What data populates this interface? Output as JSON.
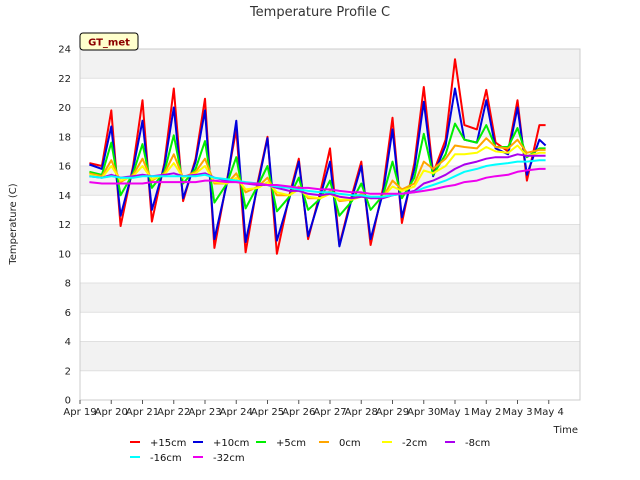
{
  "chart_data": {
    "type": "line",
    "title": "Temperature Profile C",
    "xlabel": "Time",
    "ylabel": "Temperature (C)",
    "ylim": [
      0,
      24
    ],
    "yticks": [
      0,
      2,
      4,
      6,
      8,
      10,
      12,
      14,
      16,
      18,
      20,
      22,
      24
    ],
    "xticks": [
      "Apr 19",
      "Apr 20",
      "Apr 21",
      "Apr 22",
      "Apr 23",
      "Apr 24",
      "Apr 25",
      "Apr 26",
      "Apr 27",
      "Apr 28",
      "Apr 29",
      "Apr 30",
      "May 1",
      "May 2",
      "May 3",
      "May 4"
    ],
    "x_units": "days since Apr 19",
    "xlim": [
      0,
      16
    ],
    "badge": "GT_met",
    "legend_position": "bottom",
    "series": [
      {
        "name": "+15cm",
        "color": "#ff0000",
        "x": [
          0.3,
          0.7,
          1.0,
          1.3,
          1.7,
          2.0,
          2.3,
          2.7,
          3.0,
          3.3,
          3.7,
          4.0,
          4.3,
          4.7,
          5.0,
          5.3,
          5.7,
          6.0,
          6.3,
          6.7,
          7.0,
          7.3,
          7.7,
          8.0,
          8.3,
          8.7,
          9.0,
          9.3,
          9.7,
          10.0,
          10.3,
          10.7,
          11.0,
          11.3,
          11.7,
          12.0,
          12.3,
          12.7,
          13.0,
          13.3,
          13.7,
          14.0,
          14.3,
          14.7,
          14.9
        ],
        "y": [
          16.2,
          16.0,
          19.8,
          11.9,
          16.0,
          20.5,
          12.2,
          16.2,
          21.3,
          13.6,
          16.5,
          20.6,
          10.4,
          15.0,
          18.5,
          10.1,
          15.0,
          18.0,
          10.0,
          14.0,
          16.5,
          11.0,
          14.3,
          17.2,
          10.6,
          14.0,
          16.3,
          10.6,
          14.5,
          19.3,
          12.1,
          16.2,
          21.4,
          15.5,
          17.8,
          23.3,
          18.8,
          18.5,
          21.2,
          17.6,
          17.0,
          20.5,
          15.0,
          18.8,
          18.8
        ]
      },
      {
        "name": "+10cm",
        "color": "#0000dd",
        "x": [
          0.3,
          0.7,
          1.0,
          1.3,
          1.7,
          2.0,
          2.3,
          2.7,
          3.0,
          3.3,
          3.7,
          4.0,
          4.3,
          4.7,
          5.0,
          5.3,
          5.7,
          6.0,
          6.3,
          6.7,
          7.0,
          7.3,
          7.7,
          8.0,
          8.3,
          8.7,
          9.0,
          9.3,
          9.7,
          10.0,
          10.3,
          10.7,
          11.0,
          11.3,
          11.7,
          12.0,
          12.3,
          12.7,
          13.0,
          13.3,
          13.7,
          14.0,
          14.3,
          14.7,
          14.9
        ],
        "y": [
          16.1,
          15.8,
          18.7,
          12.6,
          15.8,
          19.1,
          13.0,
          16.0,
          20.0,
          13.8,
          16.3,
          19.8,
          11.0,
          14.8,
          19.1,
          10.8,
          14.8,
          17.9,
          10.9,
          13.8,
          16.3,
          11.2,
          14.0,
          16.3,
          10.5,
          13.8,
          16.0,
          11.0,
          14.2,
          18.5,
          12.5,
          15.8,
          20.4,
          15.3,
          17.4,
          21.3,
          17.8,
          17.6,
          20.5,
          17.2,
          16.8,
          20.0,
          15.4,
          17.8,
          17.4
        ]
      },
      {
        "name": "+5cm",
        "color": "#00ee00",
        "x": [
          0.3,
          0.7,
          1.0,
          1.3,
          1.7,
          2.0,
          2.3,
          2.7,
          3.0,
          3.3,
          3.7,
          4.0,
          4.3,
          4.7,
          5.0,
          5.3,
          5.7,
          6.0,
          6.3,
          6.7,
          7.0,
          7.3,
          7.7,
          8.0,
          8.3,
          8.7,
          9.0,
          9.3,
          9.7,
          10.0,
          10.3,
          10.7,
          11.0,
          11.3,
          11.7,
          12.0,
          12.3,
          12.7,
          13.0,
          13.3,
          13.7,
          14.0,
          14.3,
          14.7,
          14.9
        ],
        "y": [
          15.6,
          15.4,
          17.6,
          14.0,
          15.5,
          17.5,
          14.5,
          15.6,
          18.1,
          14.8,
          15.8,
          17.7,
          13.5,
          14.8,
          16.6,
          13.1,
          14.7,
          16.0,
          12.9,
          13.9,
          15.2,
          13.0,
          13.8,
          15.0,
          12.6,
          13.6,
          14.8,
          13.0,
          14.0,
          16.3,
          13.8,
          15.2,
          18.2,
          15.4,
          16.8,
          18.9,
          17.8,
          17.6,
          18.8,
          17.3,
          17.3,
          18.6,
          16.6,
          17.2,
          17.2
        ]
      },
      {
        "name": "0cm",
        "color": "#ffa500",
        "x": [
          0.3,
          0.7,
          1.0,
          1.3,
          1.7,
          2.0,
          2.3,
          2.7,
          3.0,
          3.3,
          3.7,
          4.0,
          4.3,
          4.7,
          5.0,
          5.3,
          5.7,
          6.0,
          6.3,
          6.7,
          7.0,
          7.3,
          7.7,
          8.0,
          8.3,
          8.7,
          9.0,
          9.3,
          9.7,
          10.0,
          10.3,
          10.7,
          11.0,
          11.3,
          11.7,
          12.0,
          12.3,
          12.7,
          13.0,
          13.3,
          13.7,
          14.0,
          14.3,
          14.7,
          14.9
        ],
        "y": [
          15.5,
          15.3,
          16.4,
          14.9,
          15.4,
          16.5,
          15.0,
          15.5,
          16.8,
          15.2,
          15.6,
          16.5,
          14.8,
          14.8,
          15.5,
          14.2,
          14.6,
          15.2,
          14.0,
          14.0,
          14.6,
          13.8,
          13.8,
          14.3,
          13.6,
          13.7,
          14.1,
          13.8,
          13.9,
          15.0,
          14.4,
          14.8,
          16.3,
          15.8,
          16.5,
          17.4,
          17.3,
          17.2,
          17.9,
          17.3,
          17.2,
          17.8,
          16.9,
          17.1,
          17.1
        ]
      },
      {
        "name": "-2cm",
        "color": "#ffff00",
        "x": [
          0.3,
          0.7,
          1.0,
          1.3,
          1.7,
          2.0,
          2.3,
          2.7,
          3.0,
          3.3,
          3.7,
          4.0,
          4.3,
          4.7,
          5.0,
          5.3,
          5.7,
          6.0,
          6.3,
          6.7,
          7.0,
          7.3,
          7.7,
          8.0,
          8.3,
          8.7,
          9.0,
          9.3,
          9.7,
          10.0,
          10.3,
          10.7,
          11.0,
          11.3,
          11.7,
          12.0,
          12.3,
          12.7,
          13.0,
          13.3,
          13.7,
          14.0,
          14.3,
          14.7,
          14.9
        ],
        "y": [
          15.4,
          15.2,
          16.0,
          15.0,
          15.3,
          16.0,
          15.1,
          15.4,
          16.2,
          15.2,
          15.5,
          16.0,
          14.9,
          14.8,
          15.2,
          14.4,
          14.5,
          14.9,
          14.2,
          14.0,
          14.4,
          13.9,
          13.8,
          14.1,
          13.7,
          13.7,
          13.9,
          13.8,
          13.9,
          14.6,
          14.3,
          14.6,
          15.7,
          15.5,
          16.0,
          16.8,
          16.8,
          16.9,
          17.3,
          17.0,
          16.9,
          17.4,
          16.7,
          16.9,
          16.9
        ]
      },
      {
        "name": "-8cm",
        "color": "#aa00ee",
        "x": [
          0.3,
          0.7,
          1.0,
          1.3,
          1.7,
          2.0,
          2.3,
          2.7,
          3.0,
          3.3,
          3.7,
          4.0,
          4.3,
          4.7,
          5.0,
          5.3,
          5.7,
          6.0,
          6.3,
          6.7,
          7.0,
          7.3,
          7.7,
          8.0,
          8.3,
          8.7,
          9.0,
          9.3,
          9.7,
          10.0,
          10.3,
          10.7,
          11.0,
          11.3,
          11.7,
          12.0,
          12.3,
          12.7,
          13.0,
          13.3,
          13.7,
          14.0,
          14.3,
          14.7,
          14.9
        ],
        "y": [
          15.3,
          15.2,
          15.4,
          15.2,
          15.3,
          15.4,
          15.3,
          15.4,
          15.5,
          15.3,
          15.4,
          15.5,
          15.2,
          15.0,
          15.0,
          14.8,
          14.7,
          14.7,
          14.5,
          14.3,
          14.3,
          14.1,
          14.0,
          14.1,
          13.9,
          13.8,
          13.9,
          13.8,
          13.8,
          14.0,
          14.1,
          14.3,
          14.8,
          15.0,
          15.4,
          15.8,
          16.1,
          16.3,
          16.5,
          16.6,
          16.6,
          16.8,
          16.7,
          16.7,
          16.7
        ]
      },
      {
        "name": "-16cm",
        "color": "#00ffff",
        "x": [
          0.3,
          0.7,
          1.0,
          1.3,
          1.7,
          2.0,
          2.3,
          2.7,
          3.0,
          3.3,
          3.7,
          4.0,
          4.3,
          4.7,
          5.0,
          5.3,
          5.7,
          6.0,
          6.3,
          6.7,
          7.0,
          7.3,
          7.7,
          8.0,
          8.3,
          8.7,
          9.0,
          9.3,
          9.7,
          10.0,
          10.3,
          10.7,
          11.0,
          11.3,
          11.7,
          12.0,
          12.3,
          12.7,
          13.0,
          13.3,
          13.7,
          14.0,
          14.3,
          14.7,
          14.9
        ],
        "y": [
          15.3,
          15.2,
          15.3,
          15.2,
          15.2,
          15.3,
          15.3,
          15.3,
          15.3,
          15.3,
          15.3,
          15.4,
          15.2,
          15.1,
          15.0,
          14.9,
          14.8,
          14.7,
          14.6,
          14.5,
          14.4,
          14.3,
          14.2,
          14.2,
          14.1,
          14.0,
          14.0,
          13.9,
          13.9,
          14.0,
          14.1,
          14.2,
          14.5,
          14.7,
          15.0,
          15.3,
          15.6,
          15.8,
          16.0,
          16.1,
          16.2,
          16.3,
          16.3,
          16.4,
          16.4
        ]
      },
      {
        "name": "-32cm",
        "color": "#ee00ee",
        "x": [
          0.3,
          0.7,
          1.0,
          1.3,
          1.7,
          2.0,
          2.3,
          2.7,
          3.0,
          3.3,
          3.7,
          4.0,
          4.3,
          4.7,
          5.0,
          5.3,
          5.7,
          6.0,
          6.3,
          6.7,
          7.0,
          7.3,
          7.7,
          8.0,
          8.3,
          8.7,
          9.0,
          9.3,
          9.7,
          10.0,
          10.3,
          10.7,
          11.0,
          11.3,
          11.7,
          12.0,
          12.3,
          12.7,
          13.0,
          13.3,
          13.7,
          14.0,
          14.3,
          14.7,
          14.9
        ],
        "y": [
          14.9,
          14.8,
          14.8,
          14.8,
          14.8,
          14.8,
          14.9,
          14.9,
          14.9,
          14.9,
          14.9,
          15.0,
          15.0,
          14.9,
          14.9,
          14.8,
          14.8,
          14.7,
          14.7,
          14.6,
          14.5,
          14.5,
          14.4,
          14.4,
          14.3,
          14.2,
          14.2,
          14.1,
          14.1,
          14.1,
          14.1,
          14.2,
          14.3,
          14.4,
          14.6,
          14.7,
          14.9,
          15.0,
          15.2,
          15.3,
          15.4,
          15.6,
          15.7,
          15.8,
          15.8
        ]
      }
    ]
  }
}
